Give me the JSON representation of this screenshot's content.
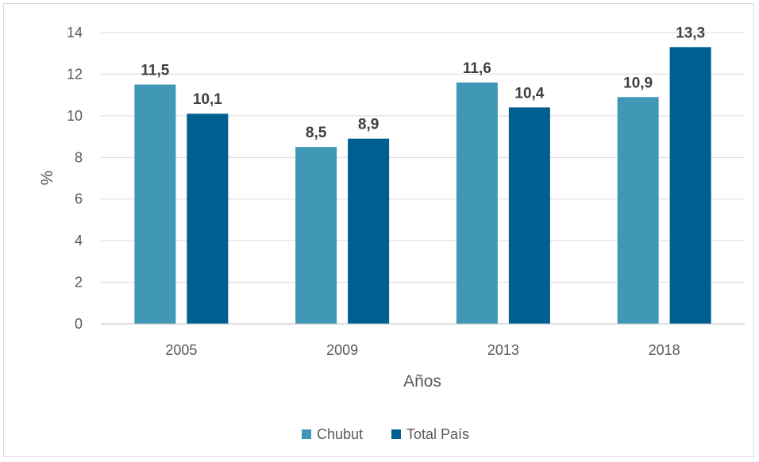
{
  "chart_data": {
    "type": "bar",
    "categories": [
      "2005",
      "2009",
      "2013",
      "2018"
    ],
    "series": [
      {
        "name": "Chubut",
        "color": "#4197b6",
        "values": [
          11.5,
          8.5,
          11.6,
          10.9
        ],
        "labels": [
          "11,5",
          "8,5",
          "11,6",
          "10,9"
        ]
      },
      {
        "name": "Total País",
        "color": "#005f91",
        "values": [
          10.1,
          8.9,
          10.4,
          13.3
        ],
        "labels": [
          "10,1",
          "8,9",
          "10,4",
          "13,3"
        ]
      }
    ],
    "title": "",
    "xlabel": "Años",
    "ylabel": "%",
    "ylim": [
      0,
      14
    ],
    "yticks": [
      0,
      2,
      4,
      6,
      8,
      10,
      12,
      14
    ],
    "grid": true,
    "legend": "bottom",
    "gridline_color": "#d9d9d9"
  }
}
